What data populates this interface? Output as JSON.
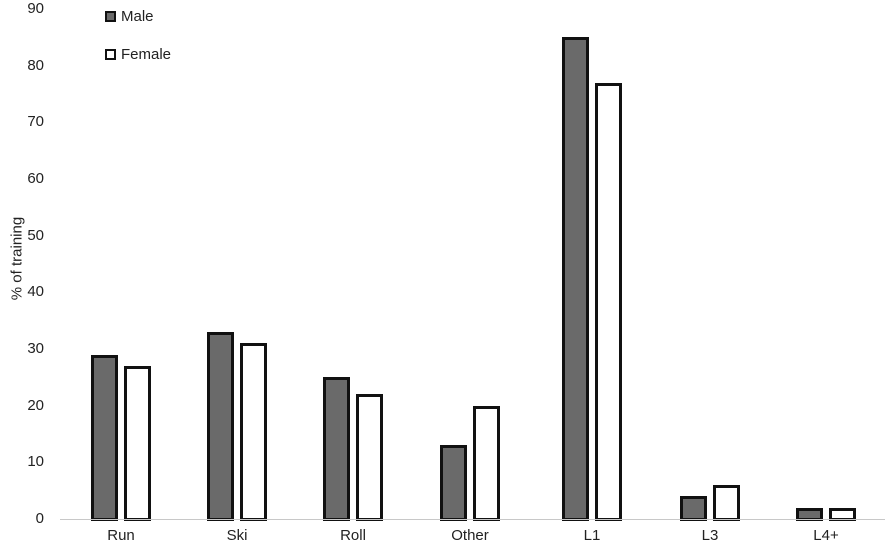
{
  "chart_data": {
    "type": "bar",
    "title": "",
    "xlabel": "",
    "ylabel": "% of training",
    "ylim": [
      0,
      90
    ],
    "yticks": [
      0,
      10,
      20,
      30,
      40,
      50,
      60,
      70,
      80,
      90
    ],
    "grid": false,
    "legend_position": "top-left",
    "categories": [
      "Run",
      "Ski",
      "Roll",
      "Other",
      "L1",
      "L3",
      "L4+"
    ],
    "series": [
      {
        "name": "Male",
        "color": "#6a6a6a",
        "values": [
          29,
          33,
          25,
          13,
          85,
          4,
          2
        ]
      },
      {
        "name": "Female",
        "color": "#ffffff",
        "values": [
          27,
          31,
          22,
          20,
          77,
          6,
          2
        ]
      }
    ]
  },
  "legend": {
    "male": "Male",
    "female": "Female"
  },
  "axis": {
    "ylabel": "% of training"
  }
}
